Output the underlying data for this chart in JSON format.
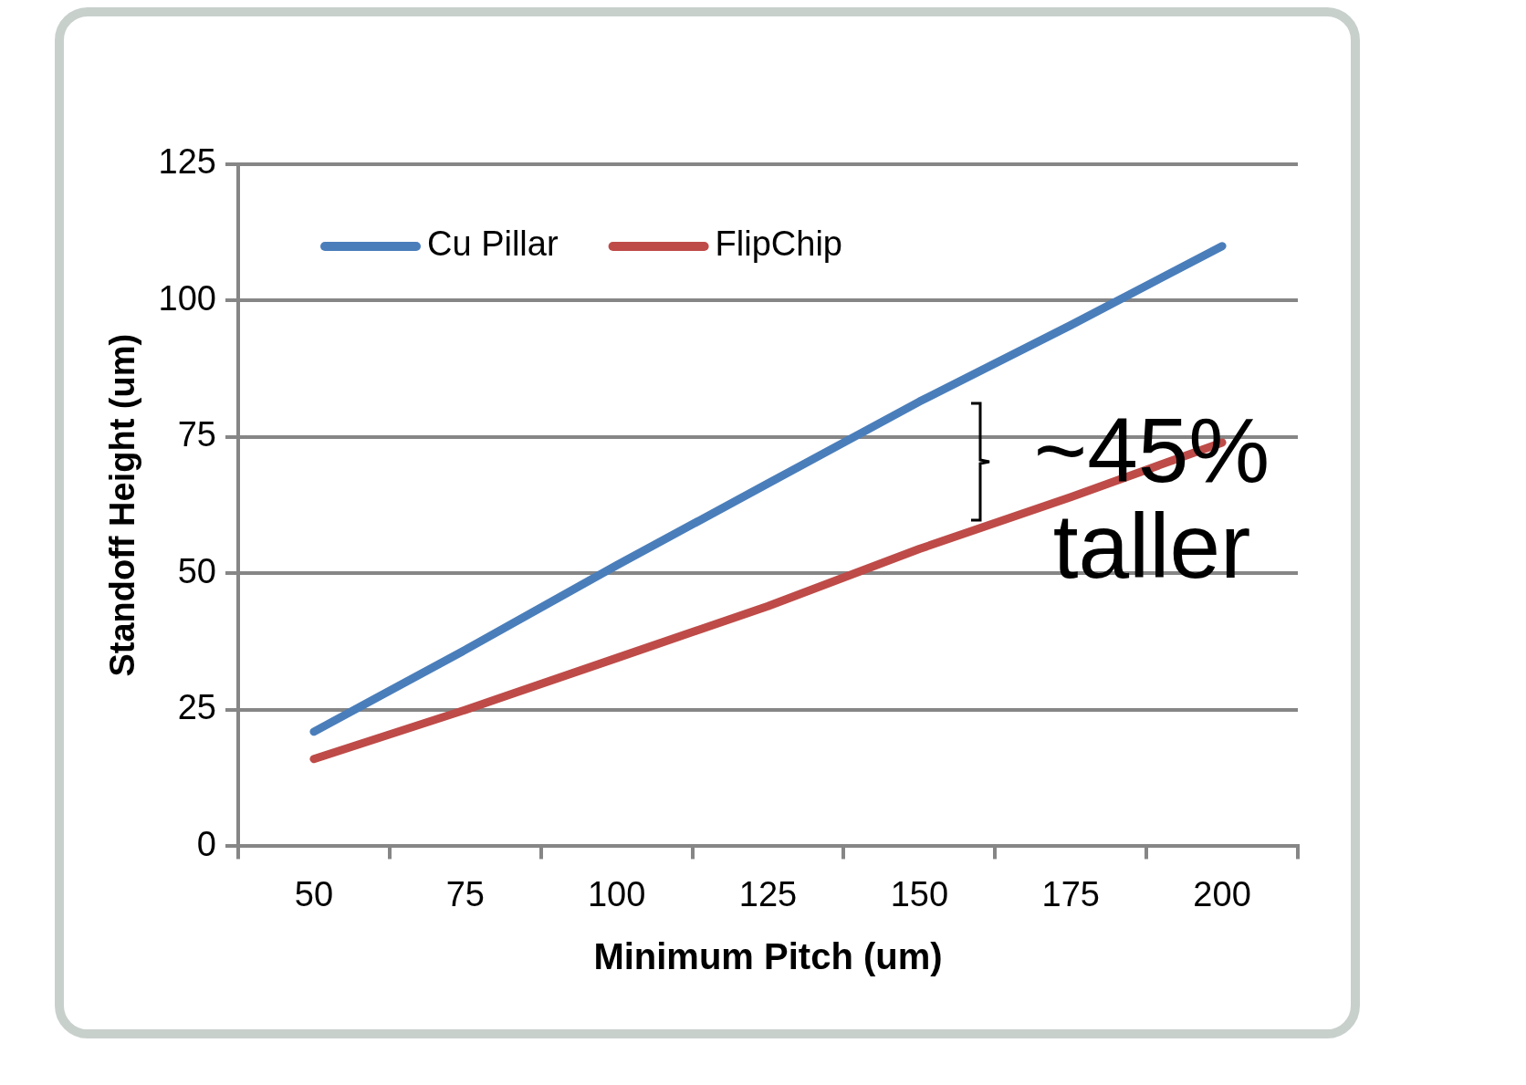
{
  "chart_data": {
    "type": "line",
    "xlabel": "Minimum Pitch (um)",
    "ylabel": "Standoff Height (um)",
    "categories": [
      "50",
      "75",
      "100",
      "125",
      "150",
      "175",
      "200"
    ],
    "series": [
      {
        "name": "Cu Pillar",
        "color": "#4a7ebb",
        "values": [
          21,
          36,
          51.5,
          66.5,
          81.5,
          95.5,
          110
        ]
      },
      {
        "name": "FlipChip",
        "color": "#be4b48",
        "values": [
          16,
          25,
          34.5,
          44,
          54.5,
          64,
          74
        ]
      }
    ],
    "ylim": [
      0,
      125
    ],
    "yticks": [
      0,
      25,
      50,
      75,
      100,
      125
    ],
    "grid": "y",
    "legend": "top left",
    "marker": "none",
    "line_style": "solid",
    "annotations": [
      "~45% taller"
    ]
  }
}
